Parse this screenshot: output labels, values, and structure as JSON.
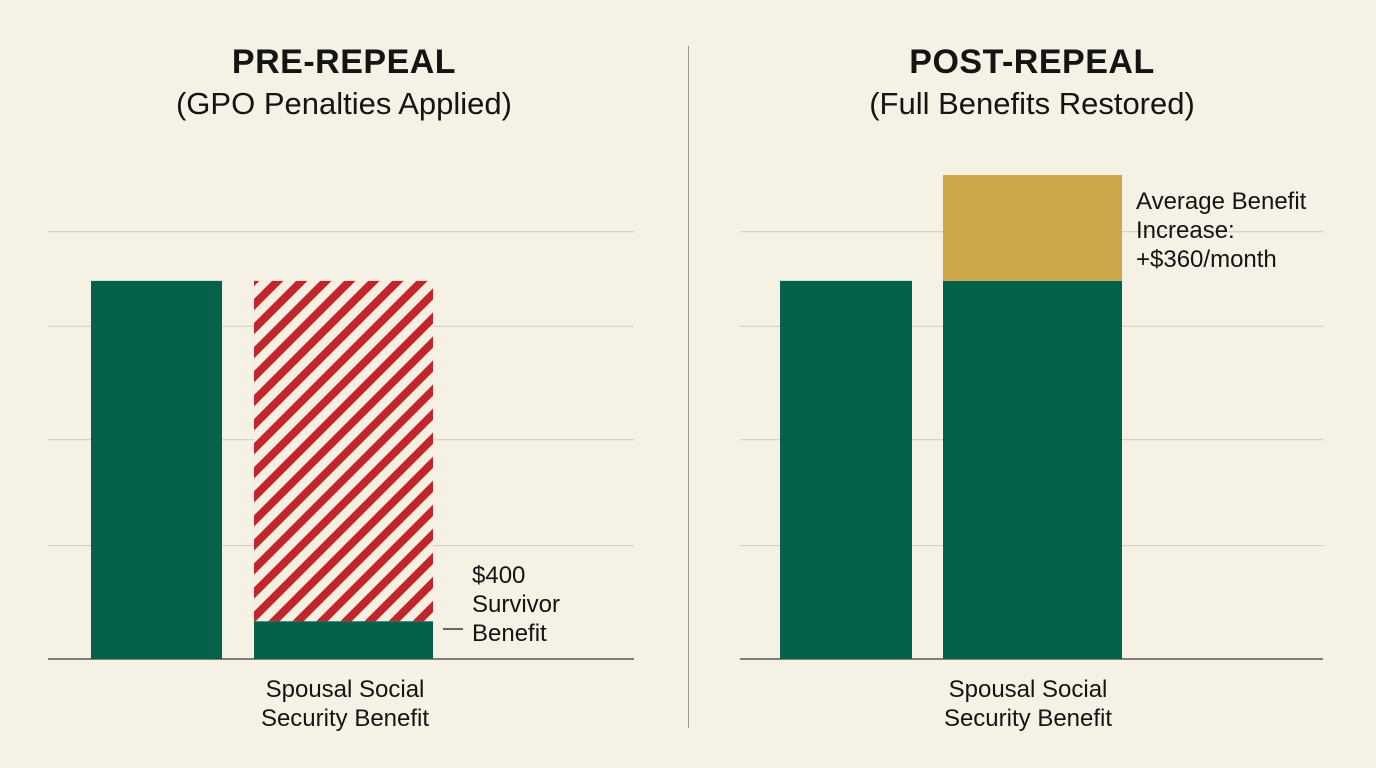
{
  "chart_data": [
    {
      "type": "bar",
      "title": "PRE-REPEAL",
      "subtitle": "(GPO Penalties Applied)",
      "xlabel_lines": [
        "Spousal Social",
        "Security Benefit"
      ],
      "ylim": [
        0,
        1280
      ],
      "gridlines": [
        0,
        300,
        580,
        880,
        1130
      ],
      "grid": true,
      "bars": [
        {
          "value": 1000,
          "color": "#04624a",
          "pattern": "solid"
        },
        {
          "stack": [
            {
              "value": 100,
              "color": "#04624a",
              "pattern": "solid"
            },
            {
              "value": 900,
              "color": "#c0262c",
              "pattern": "diagonal-stripes"
            }
          ]
        }
      ],
      "annotation": {
        "lines": [
          "$400",
          "Survivor",
          "Benefit"
        ]
      },
      "colors": {
        "bar": "#04624a",
        "penalty": "#c0262c"
      }
    },
    {
      "type": "bar",
      "title": "POST-REPEAL",
      "subtitle": "(Full Benefits Restored)",
      "xlabel_lines": [
        "Spousal Social",
        "Security Benefit"
      ],
      "ylim": [
        0,
        1280
      ],
      "gridlines": [
        0,
        300,
        580,
        880,
        1130
      ],
      "grid": true,
      "bars": [
        {
          "value": 1000,
          "color": "#04624a",
          "pattern": "solid"
        },
        {
          "stack": [
            {
              "value": 1000,
              "color": "#04624a",
              "pattern": "solid"
            },
            {
              "value": 280,
              "color": "#cba74a",
              "pattern": "solid"
            }
          ]
        }
      ],
      "annotation": {
        "lines": [
          "Average Benefit",
          "Increase:",
          "+$360/month"
        ]
      },
      "colors": {
        "bar": "#04624a",
        "increase": "#cba74a"
      }
    }
  ]
}
